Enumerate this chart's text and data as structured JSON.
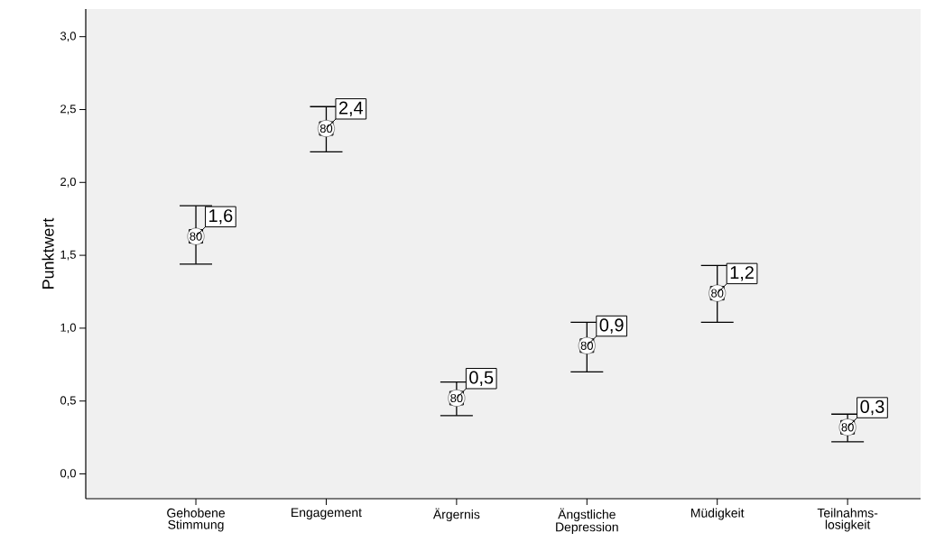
{
  "chart_data": {
    "type": "scatter",
    "ylabel": "Punktwert",
    "categories": [
      "Gehobene Stimmung",
      "Engagement",
      "Ärgernis",
      "Ängstliche Depression",
      "Müdigkeit",
      "Teilnahms-losigkeit"
    ],
    "values": [
      1.63,
      2.37,
      0.52,
      0.88,
      1.24,
      0.32
    ],
    "errors": [
      [
        1.44,
        1.84
      ],
      [
        2.21,
        2.52
      ],
      [
        0.4,
        0.63
      ],
      [
        0.7,
        1.04
      ],
      [
        1.04,
        1.43
      ],
      [
        0.22,
        0.41
      ]
    ],
    "value_labels": [
      "1,6",
      "2,4",
      "0,5",
      "0,9",
      "1,2",
      "0,3"
    ],
    "color": "#000000",
    "marker": "square",
    "annotations": [
      {
        "text": "80",
        "x": "Gehobene Stimmung",
        "y": 1.63
      },
      {
        "text": "80",
        "x": "Engagement",
        "y": 2.37
      },
      {
        "text": "80",
        "x": "Ärgernis",
        "y": 0.52
      },
      {
        "text": "80",
        "x": "Ängstliche Depression",
        "y": 0.88
      },
      {
        "text": "80",
        "x": "Müdigkeit",
        "y": 1.24
      },
      {
        "text": "80",
        "x": "Teilnahms-losigkeit",
        "y": 0.32
      }
    ],
    "ylim": [
      -0.17,
      3.19
    ],
    "yticks": [
      {
        "value": 0,
        "label": "0,0"
      },
      {
        "value": 0.5,
        "label": "0,5"
      },
      {
        "value": 1,
        "label": "1,0"
      },
      {
        "value": 1.5,
        "label": "1,5"
      },
      {
        "value": 2,
        "label": "2,0"
      },
      {
        "value": 2.5,
        "label": "2,5"
      },
      {
        "value": 3,
        "label": "3,0"
      }
    ],
    "grid": false
  }
}
